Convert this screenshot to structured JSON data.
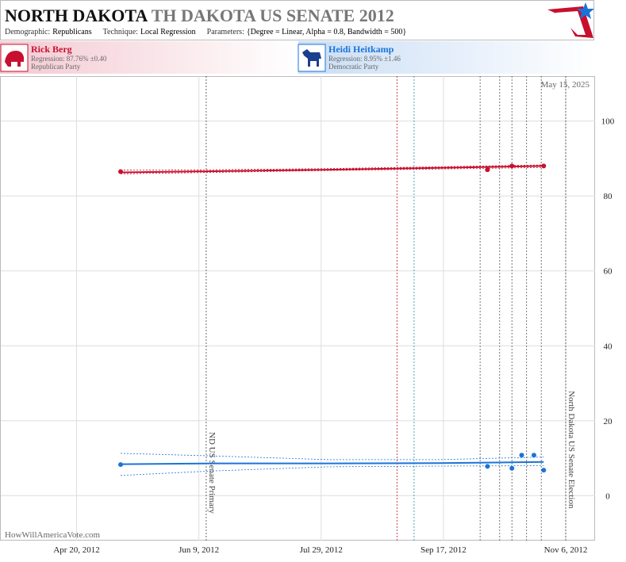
{
  "chart_data": {
    "type": "line",
    "title": "NORTH DAKOTA",
    "title_race": "TH DAKOTA US SENATE 2012",
    "meta": [
      {
        "label": "Demographic:",
        "value": "Republicans"
      },
      {
        "label": "Technique:",
        "value": "Local Regression"
      },
      {
        "label": "Parameters:",
        "value": "{Degree = Linear, Alpha = 0.8, Bandwidth = 500}"
      }
    ],
    "date_note": "May 15, 2025",
    "source": "HowWillAmericaVote.com",
    "xlim": [
      "2012-03-20",
      "2012-11-18"
    ],
    "xticks": [
      {
        "value": "2012-04-20",
        "label": "Apr 20, 2012"
      },
      {
        "value": "2012-06-09",
        "label": "Jun 9, 2012"
      },
      {
        "value": "2012-07-29",
        "label": "Jul 29, 2012"
      },
      {
        "value": "2012-09-17",
        "label": "Sep 17, 2012"
      },
      {
        "value": "2012-11-06",
        "label": "Nov 6, 2012"
      }
    ],
    "ylim": [
      -12,
      112
    ],
    "yticks": [
      0,
      20,
      40,
      60,
      80,
      100
    ],
    "grid": true,
    "annotations": [
      {
        "x": "2012-06-12",
        "text": "ND US Senate Primary"
      },
      {
        "x": "2012-11-06",
        "text": "North Dakota US Senate Election"
      }
    ],
    "event_lines": [
      {
        "x": "2012-08-29",
        "color": "#c8102e"
      },
      {
        "x": "2012-09-05",
        "color": "#1a8fa0"
      },
      {
        "x": "2012-10-02",
        "color": "#555555"
      },
      {
        "x": "2012-10-10",
        "color": "#555555"
      },
      {
        "x": "2012-10-15",
        "color": "#555555"
      },
      {
        "x": "2012-10-21",
        "color": "#555555"
      },
      {
        "x": "2012-10-27",
        "color": "#555555"
      }
    ],
    "series": [
      {
        "name": "Rick Berg",
        "party": "Republican Party",
        "regression_label": "Regression: 87.76% ±0.40",
        "color": "#c8102e",
        "x": [
          "2012-05-08",
          "2012-10-05",
          "2012-10-15",
          "2012-10-28"
        ],
        "values": [
          86.5,
          87,
          88,
          88
        ],
        "trend": {
          "x": [
            "2012-05-08",
            "2012-06-15",
            "2012-08-01",
            "2012-09-15",
            "2012-10-28"
          ],
          "values": [
            86.3,
            86.6,
            87.0,
            87.5,
            88.0
          ],
          "lower": [
            85.9,
            86.3,
            86.8,
            87.2,
            87.6
          ],
          "upper": [
            86.9,
            87.0,
            87.3,
            87.8,
            88.3
          ]
        }
      },
      {
        "name": "Heidi Heitkamp",
        "party": "Democratic Party",
        "regression_label": "Regression: 8.95% ±1.46",
        "color": "#1a73d9",
        "x": [
          "2012-05-08",
          "2012-10-05",
          "2012-10-15",
          "2012-10-19",
          "2012-10-24",
          "2012-10-28"
        ],
        "values": [
          8.3,
          7.8,
          7.3,
          10.8,
          10.8,
          6.8
        ],
        "trend": {
          "x": [
            "2012-05-08",
            "2012-06-15",
            "2012-08-01",
            "2012-09-15",
            "2012-10-28"
          ],
          "values": [
            8.4,
            8.6,
            8.6,
            8.7,
            9.0
          ],
          "lower": [
            5.4,
            6.6,
            7.7,
            7.9,
            8.0
          ],
          "upper": [
            11.3,
            10.6,
            9.6,
            9.6,
            10.3
          ]
        }
      }
    ]
  }
}
